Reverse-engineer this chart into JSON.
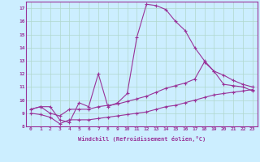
{
  "xlabel": "Windchill (Refroidissement éolien,°C)",
  "bg_color": "#cceeff",
  "grid_color": "#b0d8cc",
  "line_color": "#993399",
  "line1_x": [
    0,
    1,
    2,
    3,
    4,
    5,
    6,
    7,
    8,
    9,
    10,
    11,
    12,
    13,
    14,
    15,
    16,
    17,
    18,
    19,
    20,
    21,
    22,
    23
  ],
  "line1_y": [
    9.3,
    9.5,
    9.5,
    8.5,
    8.3,
    9.8,
    9.5,
    12.0,
    9.5,
    9.8,
    10.5,
    14.8,
    17.3,
    17.2,
    16.9,
    16.0,
    15.3,
    14.0,
    13.0,
    12.2,
    11.2,
    11.1,
    11.0,
    10.7
  ],
  "line2_x": [
    0,
    1,
    2,
    3,
    4,
    5,
    6,
    7,
    8,
    9,
    10,
    11,
    12,
    13,
    14,
    15,
    16,
    17,
    18,
    19,
    20,
    21,
    22,
    23
  ],
  "line2_y": [
    9.3,
    9.5,
    9.0,
    8.8,
    9.3,
    9.3,
    9.3,
    9.5,
    9.6,
    9.7,
    9.9,
    10.1,
    10.3,
    10.6,
    10.9,
    11.1,
    11.3,
    11.6,
    12.9,
    12.2,
    11.9,
    11.5,
    11.2,
    11.0
  ],
  "line3_x": [
    0,
    1,
    2,
    3,
    4,
    5,
    6,
    7,
    8,
    9,
    10,
    11,
    12,
    13,
    14,
    15,
    16,
    17,
    18,
    19,
    20,
    21,
    22,
    23
  ],
  "line3_y": [
    9.0,
    8.9,
    8.7,
    8.2,
    8.5,
    8.5,
    8.5,
    8.6,
    8.7,
    8.8,
    8.9,
    9.0,
    9.1,
    9.3,
    9.5,
    9.6,
    9.8,
    10.0,
    10.2,
    10.4,
    10.5,
    10.6,
    10.7,
    10.8
  ],
  "xlim": [
    -0.5,
    23.5
  ],
  "ylim": [
    8,
    17.5
  ],
  "xticks": [
    0,
    1,
    2,
    3,
    4,
    5,
    6,
    7,
    8,
    9,
    10,
    11,
    12,
    13,
    14,
    15,
    16,
    17,
    18,
    19,
    20,
    21,
    22,
    23
  ],
  "yticks": [
    8,
    9,
    10,
    11,
    12,
    13,
    14,
    15,
    16,
    17
  ]
}
